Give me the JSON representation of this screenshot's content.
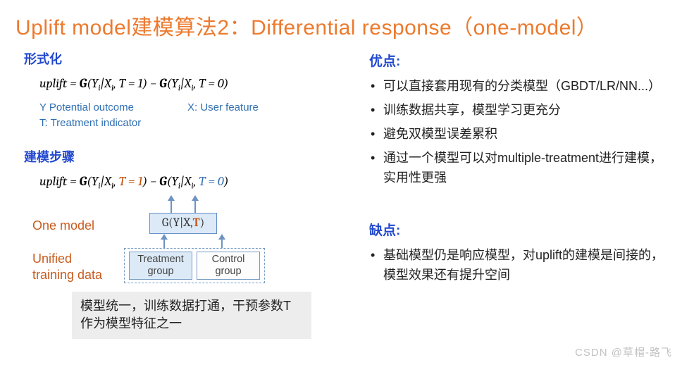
{
  "title": "Uplift model建模算法2：Differential response（one-model）",
  "left": {
    "formalization_header": "形式化",
    "formula1_html": "uplift = <span class='G'>G</span>(Y<span class='sub'>i</span>|X<span class='sub'>i</span>, T = 1) − <span class='G'>G</span>(Y<span class='sub'>i</span>|X<span class='sub'>i</span>, T = 0)",
    "var_y": "Y Potential outcome",
    "var_t": "T: Treatment indicator",
    "var_x": "X: User feature",
    "steps_header": "建模步骤",
    "formula2_html": "uplift = <span class='G'>G</span>(Y<span class='sub'>i</span>|X<span class='sub'>i</span>, <span class='t1'>T = 1</span>) − <span class='G'>G</span>(Y<span class='sub'>i</span>|X<span class='sub'>i</span>, <span class='t0'>T = 0</span>)",
    "one_model_label": "One model",
    "unified_label": "Unified\ntraining data",
    "model_box_html": "G(Y|X,<span class='T'>T</span>)",
    "treatment_group": "Treatment group",
    "control_group": "Control group",
    "summary": "模型统一，训练数据打通，干预参数T作为模型特征之一"
  },
  "right": {
    "advantages_header": "优点:",
    "advantages": [
      "可以直接套用现有的分类模型（GBDT/LR/NN...）",
      "训练数据共享，模型学习更充分",
      "避免双模型误差累积",
      "通过一个模型可以对multiple-treatment进行建模，实用性更强"
    ],
    "disadvantages_header": "缺点:",
    "disadvantages": [
      "基础模型仍是响应模型，对uplift的建模是间接的，模型效果还有提升空间"
    ]
  },
  "watermark": "CSDN @草帽-路飞",
  "colors": {
    "title": "#ec7a2e",
    "section_header": "#2148ce",
    "var_text": "#2f6fb2",
    "diagram_label": "#c75b1e",
    "box_border": "#6590c9",
    "box_fill": "#dceaf7",
    "summary_bg": "#ededed",
    "treatment_color": "#bf4a00",
    "control_color": "#2f6fb2"
  }
}
